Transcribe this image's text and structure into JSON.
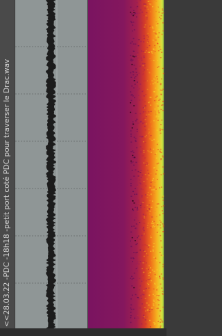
{
  "file_name": "<<28.03.22 -PDC -18h18 -petit port coté PDC pour traverser le Drac.wav"
}
